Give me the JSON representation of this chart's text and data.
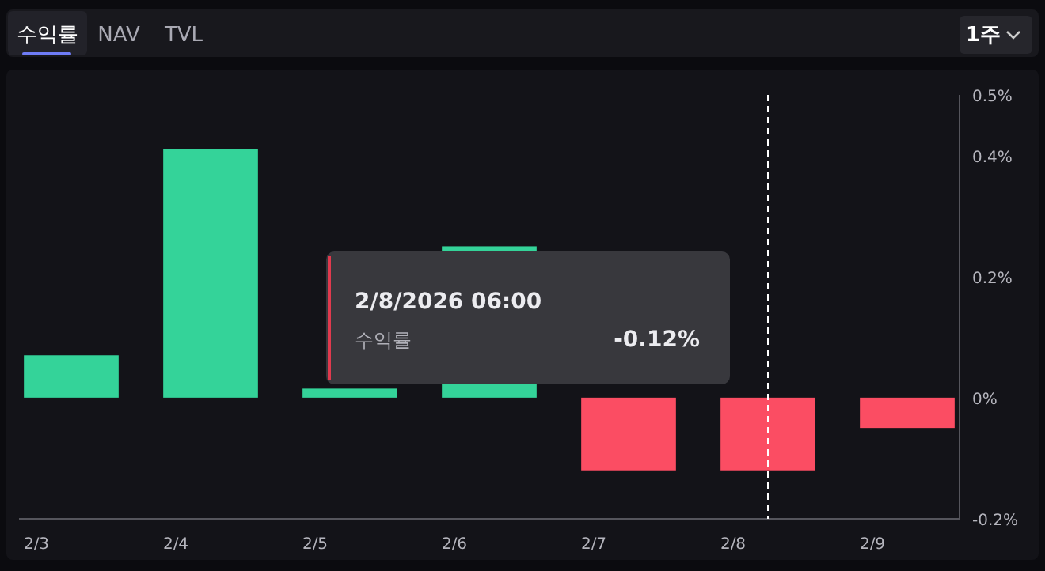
{
  "chart_data": {
    "type": "bar",
    "x": [
      "2026-02-03T06:00",
      "2026-02-04T06:00",
      "2026-02-05T06:00",
      "2026-02-06T06:00",
      "2026-02-07T06:00",
      "2026-02-08T06:00",
      "2026-02-09T06:00"
    ],
    "values": [
      0.07,
      0.41,
      0.015,
      0.25,
      -0.12,
      -0.12,
      -0.05
    ],
    "colors": [
      "#34d399",
      "#34d399",
      "#34d399",
      "#34d399",
      "#fb4d63",
      "#fb4d63",
      "#fb4d63"
    ],
    "xlim": [
      "2026-02-02T21:00",
      "2026-02-09T15:00"
    ],
    "xticks": [
      {
        "value": "2026-02-03T00:00",
        "label": "2/3"
      },
      {
        "value": "2026-02-04T00:00",
        "label": "2/4"
      },
      {
        "value": "2026-02-05T00:00",
        "label": "2/5"
      },
      {
        "value": "2026-02-06T00:00",
        "label": "2/6"
      },
      {
        "value": "2026-02-07T00:00",
        "label": "2/7"
      },
      {
        "value": "2026-02-08T00:00",
        "label": "2/8"
      },
      {
        "value": "2026-02-09T00:00",
        "label": "2/9"
      }
    ],
    "ylim": [
      -0.2,
      0.5
    ],
    "yticks": [
      {
        "value": -0.2,
        "label": "-0.2%"
      },
      {
        "value": 0,
        "label": "0%"
      },
      {
        "value": 0.2,
        "label": "0.2%"
      },
      {
        "value": 0.4,
        "label": "0.4%"
      },
      {
        "value": 0.5,
        "label": "0.5%"
      }
    ],
    "ref_lines": [
      {
        "axis": "x",
        "value": "2026-02-08T06:00",
        "color": "#ffffff",
        "line_style": "dashed"
      }
    ],
    "annotations": [
      "수익률",
      "NAV",
      "TVL",
      "1주",
      "2/8/2026 06:00",
      "수익률",
      "-0.12%"
    ],
    "grid": false
  }
}
